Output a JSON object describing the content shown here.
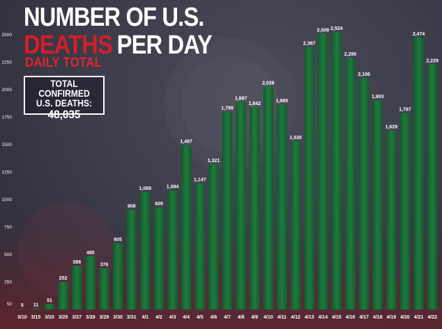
{
  "title": {
    "line1": "NUMBER OF U.S.",
    "line2_red": "DEATHS",
    "line2_white": "PER DAY"
  },
  "subtitle": "DAILY TOTAL",
  "total_box": {
    "label": "TOTAL CONFIRMED\nU.S. DEATHS:",
    "value": "48,035"
  },
  "colors": {
    "bar": "#1e7a3e",
    "bar_dark": "#145a2c",
    "title_red": "#d21f2a",
    "text": "#ffffff"
  },
  "chart_data": {
    "type": "bar",
    "title": "NUMBER OF U.S. DEATHS PER DAY",
    "subtitle": "DAILY TOTAL",
    "categories": [
      "3/10",
      "3/15",
      "3/20",
      "3/25",
      "3/27",
      "3/28",
      "3/29",
      "3/30",
      "3/31",
      "4/1",
      "4/2",
      "4/3",
      "4/4",
      "4/5",
      "4/6",
      "4/7",
      "4/8",
      "4/9",
      "4/10",
      "4/11",
      "4/12",
      "4/13",
      "4/14",
      "4/15",
      "4/16",
      "4/17",
      "4/18",
      "4/19",
      "4/20",
      "4/21",
      "4/22"
    ],
    "values": [
      5,
      11,
      51,
      252,
      398,
      485,
      376,
      605,
      908,
      1069,
      929,
      1084,
      1497,
      1147,
      1321,
      1799,
      1887,
      1842,
      2028,
      1865,
      1530,
      2387,
      2509,
      2524,
      2290,
      2106,
      1903,
      1629,
      1787,
      2474,
      2229
    ],
    "value_labels": [
      "5",
      "11",
      "51",
      "252",
      "398",
      "485",
      "376",
      "605",
      "908",
      "1,069",
      "929",
      "1,084",
      "1,497",
      "1,147",
      "1,321",
      "1,799",
      "1,887",
      "1,842",
      "2,028",
      "1,865",
      "1,530",
      "2,387",
      "2,509",
      "2,524",
      "2,290",
      "2,106",
      "1,903",
      "1,629",
      "1,787",
      "2,474",
      "2,229"
    ],
    "yticks": [
      50,
      250,
      500,
      750,
      1000,
      1250,
      1500,
      1750,
      2000,
      2250,
      2500
    ],
    "ylim": [
      0,
      2600
    ],
    "xlabel": "",
    "ylabel": "",
    "grid": false
  }
}
